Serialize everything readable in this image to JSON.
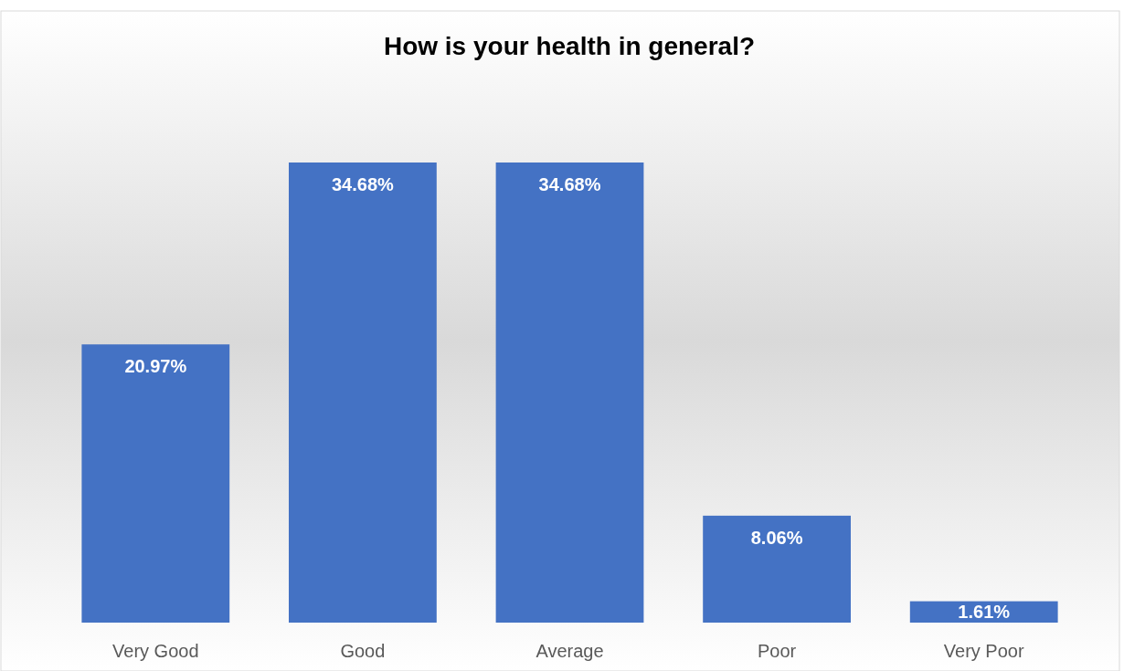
{
  "chart_data": {
    "type": "bar",
    "title": "How is your health in general?",
    "categories": [
      "Very Good",
      "Good",
      "Average",
      "Poor",
      "Very Poor"
    ],
    "values": [
      20.97,
      34.68,
      34.68,
      8.06,
      1.61
    ],
    "value_labels": [
      "20.97%",
      "34.68%",
      "34.68%",
      "8.06%",
      "1.61%"
    ],
    "color": "#4472c4"
  }
}
